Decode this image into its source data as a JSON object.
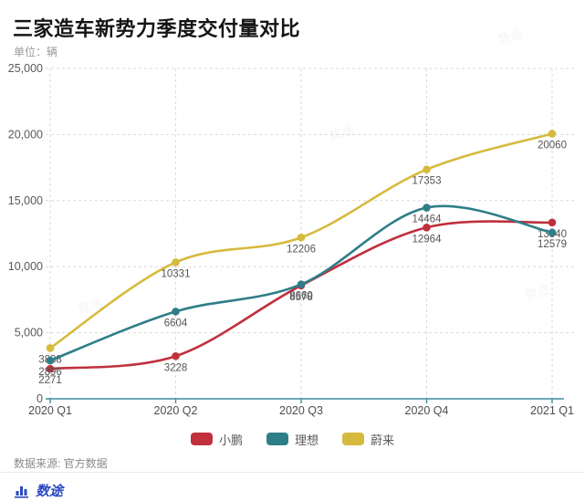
{
  "title": "三家造车新势力季度交付量对比",
  "unit_label": "单位：辆",
  "chart_data": {
    "type": "line",
    "categories": [
      "2020 Q1",
      "2020 Q2",
      "2020 Q3",
      "2020 Q4",
      "2021 Q1"
    ],
    "series": [
      {
        "name": "小鹏",
        "color": "#c0303d",
        "values": [
          2271,
          3228,
          8578,
          12964,
          13340
        ]
      },
      {
        "name": "理想",
        "color": "#2e7e89",
        "values": [
          2896,
          6604,
          8660,
          14464,
          12579
        ]
      },
      {
        "name": "蔚来",
        "color": "#d6ba3d",
        "values": [
          3838,
          10331,
          12206,
          17353,
          20060
        ]
      }
    ],
    "ylim": [
      0,
      25000
    ],
    "ytick_interval": 5000,
    "ytick_labels": [
      "0",
      "5,000",
      "10,000",
      "15,000",
      "20,000",
      "25,000"
    ],
    "grid": "dashed",
    "legend_position": "bottom",
    "smooth": true,
    "point_labels_visible": true
  },
  "colors": {
    "axis": "#3e8aa0",
    "grid": "#dadada",
    "tick_label": "#595959",
    "data_label": "#555555",
    "title": "#141414",
    "brand_blue": "#2a49c0"
  },
  "footer": {
    "source": "数据来源: 官方数据",
    "brand": "数途"
  },
  "watermark": "数途"
}
